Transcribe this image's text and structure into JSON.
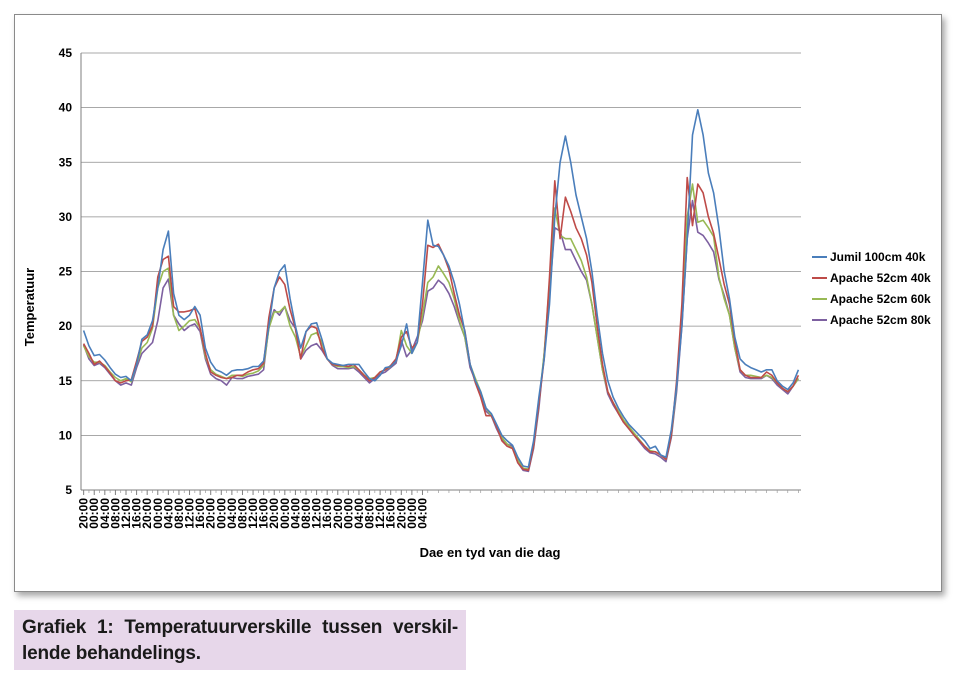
{
  "chart_data": {
    "type": "line",
    "title": "",
    "xlabel": "Dae en tyd van die dag",
    "ylabel": "Temperatuur",
    "ylim": [
      5,
      45
    ],
    "yticks": [
      5,
      10,
      15,
      20,
      25,
      30,
      35,
      40,
      45
    ],
    "grid": "horizontal",
    "legend_position": "right",
    "x_tick_labels": [
      "20:00",
      "00:00",
      "04:00",
      "08:00",
      "12:00",
      "16:00",
      "20:00",
      "00:00",
      "04:00",
      "08:00",
      "12:00",
      "16:00",
      "20:00",
      "00:00",
      "04:00",
      "08:00",
      "12:00",
      "16:00",
      "20:00",
      "00:00",
      "04:00",
      "08:00",
      "12:00",
      "16:00",
      "20:00",
      "00:00",
      "04:00",
      "08:00",
      "12:00",
      "16:00",
      "20:00",
      "00:00",
      "04:00"
    ],
    "x_interval_hours": 2,
    "series": [
      {
        "name": "Jumil 100cm 40k",
        "color": "#4a7ebb",
        "values": [
          19.6,
          18.2,
          17.3,
          17.4,
          16.9,
          16.2,
          15.6,
          15.3,
          15.4,
          15.0,
          16.5,
          18.8,
          19.2,
          20.5,
          23.5,
          27.0,
          28.7,
          23.0,
          21.0,
          20.6,
          21.0,
          21.8,
          21.0,
          18.0,
          16.7,
          16.0,
          15.8,
          15.5,
          15.9,
          16.0,
          16.0,
          16.1,
          16.3,
          16.3,
          16.8,
          20.0,
          23.5,
          25.0,
          25.6,
          22.5,
          20.0,
          18.0,
          19.5,
          20.2,
          20.3,
          18.8,
          17.0,
          16.6,
          16.5,
          16.4,
          16.5,
          16.5,
          16.5,
          15.8,
          15.2,
          15.0,
          15.5,
          16.2,
          16.3,
          16.8,
          18.2,
          20.2,
          17.5,
          18.5,
          24.0,
          29.7,
          27.4,
          27.3,
          26.5,
          25.5,
          24.0,
          22.0,
          19.5,
          16.5,
          15.0,
          14.0,
          12.5,
          12.0,
          11.0,
          10.0,
          9.5,
          9.1,
          8.0,
          7.2,
          7.1,
          9.5,
          13.5,
          17.0,
          22.0,
          30.0,
          35.0,
          37.4,
          35.0,
          32.0,
          30.0,
          28.0,
          25.0,
          21.0,
          17.5,
          15.0,
          13.5,
          12.5,
          11.7,
          11.0,
          10.5,
          10.0,
          9.5,
          8.8,
          9.0,
          8.2,
          8.0,
          10.5,
          14.5,
          20.0,
          28.0,
          37.5,
          39.8,
          37.5,
          34.0,
          32.2,
          29.0,
          25.0,
          22.5,
          19.0,
          17.0,
          16.5,
          16.2,
          16.0,
          15.8,
          16.0,
          16.0,
          15.0,
          14.5,
          14.2,
          14.8,
          16.0
        ]
      },
      {
        "name": "Apache 52cm 40k",
        "color": "#be4b48",
        "values": [
          18.4,
          17.5,
          16.5,
          16.8,
          16.3,
          15.7,
          15.0,
          14.8,
          15.0,
          15.1,
          16.8,
          18.6,
          19.0,
          20.0,
          24.5,
          26.1,
          26.4,
          21.8,
          21.3,
          21.3,
          21.4,
          21.6,
          19.8,
          17.5,
          15.8,
          15.5,
          15.3,
          15.2,
          15.3,
          15.5,
          15.5,
          15.8,
          16.0,
          16.1,
          16.6,
          20.8,
          23.5,
          24.5,
          23.8,
          21.5,
          19.8,
          17.0,
          19.5,
          20.0,
          19.8,
          18.0,
          17.0,
          16.5,
          16.4,
          16.4,
          16.3,
          16.5,
          16.0,
          15.5,
          15.0,
          15.3,
          15.8,
          16.0,
          16.4,
          17.0,
          19.0,
          19.5,
          18.0,
          18.5,
          22.0,
          27.4,
          27.2,
          27.5,
          26.5,
          25.2,
          23.0,
          21.0,
          19.6,
          16.5,
          14.8,
          13.5,
          11.8,
          11.8,
          10.8,
          9.5,
          9.0,
          8.8,
          7.5,
          6.9,
          6.8,
          9.0,
          13.0,
          17.0,
          24.5,
          33.3,
          28.0,
          31.8,
          30.5,
          29.0,
          28.0,
          26.5,
          24.0,
          20.0,
          16.5,
          14.0,
          13.0,
          12.0,
          11.2,
          10.6,
          10.0,
          9.5,
          9.0,
          8.5,
          8.5,
          8.2,
          7.8,
          10.0,
          15.0,
          22.0,
          33.6,
          29.2,
          33.0,
          32.2,
          30.0,
          28.5,
          26.2,
          23.8,
          22.0,
          18.6,
          16.0,
          15.5,
          15.3,
          15.3,
          15.3,
          15.8,
          15.5,
          14.8,
          14.3,
          14.0,
          14.5,
          15.5
        ]
      },
      {
        "name": "Apache 52cm 60k",
        "color": "#98b954",
        "values": [
          18.2,
          17.2,
          16.7,
          16.7,
          16.4,
          15.8,
          15.3,
          15.0,
          15.2,
          14.9,
          16.5,
          18.0,
          18.5,
          19.8,
          23.5,
          25.0,
          25.3,
          21.0,
          19.6,
          20.0,
          20.5,
          20.6,
          19.8,
          17.2,
          16.0,
          15.6,
          15.4,
          15.2,
          15.5,
          15.5,
          15.4,
          15.6,
          15.7,
          15.9,
          16.4,
          19.8,
          21.3,
          21.3,
          21.8,
          20.0,
          19.0,
          17.2,
          18.2,
          19.2,
          19.4,
          18.5,
          17.0,
          16.5,
          16.3,
          16.3,
          16.2,
          16.3,
          16.0,
          15.5,
          15.2,
          15.3,
          15.8,
          16.0,
          16.3,
          16.8,
          19.6,
          18.2,
          17.5,
          18.5,
          21.0,
          24.0,
          24.5,
          25.5,
          24.8,
          24.0,
          22.5,
          20.5,
          19.0,
          16.5,
          15.2,
          14.0,
          12.5,
          11.8,
          10.8,
          9.8,
          9.2,
          8.8,
          7.8,
          7.0,
          6.9,
          9.0,
          13.0,
          17.5,
          24.0,
          30.8,
          28.3,
          28.0,
          28.0,
          27.0,
          26.0,
          24.5,
          22.0,
          19.0,
          16.0,
          14.0,
          13.0,
          12.2,
          11.4,
          10.8,
          10.2,
          9.6,
          9.0,
          8.6,
          8.5,
          8.2,
          7.8,
          10.0,
          14.5,
          21.0,
          30.0,
          33.0,
          29.5,
          29.7,
          29.0,
          28.2,
          24.5,
          22.5,
          21.0,
          18.0,
          16.0,
          15.5,
          15.5,
          15.4,
          15.3,
          15.5,
          15.3,
          14.8,
          14.3,
          14.0,
          14.5,
          15.2
        ]
      },
      {
        "name": "Apache 52cm 80k",
        "color": "#7d60a0",
        "values": [
          18.3,
          17.0,
          16.4,
          16.6,
          16.2,
          15.6,
          15.0,
          14.6,
          14.8,
          14.6,
          16.2,
          17.5,
          18.0,
          18.5,
          20.5,
          23.5,
          24.3,
          21.0,
          20.2,
          19.6,
          20.0,
          20.2,
          19.5,
          17.0,
          15.6,
          15.2,
          15.0,
          14.6,
          15.3,
          15.2,
          15.2,
          15.4,
          15.5,
          15.6,
          16.0,
          20.0,
          21.5,
          21.0,
          21.8,
          20.5,
          19.8,
          17.0,
          17.8,
          18.2,
          18.4,
          17.8,
          17.0,
          16.4,
          16.1,
          16.1,
          16.1,
          16.2,
          15.8,
          15.3,
          14.8,
          15.2,
          15.6,
          15.8,
          16.2,
          16.6,
          18.7,
          17.2,
          17.8,
          19.0,
          20.5,
          23.2,
          23.5,
          24.2,
          23.8,
          23.0,
          21.8,
          20.3,
          19.0,
          16.2,
          15.0,
          13.8,
          12.2,
          11.8,
          10.6,
          9.6,
          9.2,
          9.0,
          7.5,
          6.8,
          6.7,
          8.8,
          12.5,
          17.5,
          23.0,
          29.0,
          28.7,
          27.0,
          27.0,
          26.0,
          25.0,
          24.2,
          22.0,
          19.0,
          16.0,
          13.8,
          12.8,
          12.0,
          11.2,
          10.6,
          10.0,
          9.4,
          8.8,
          8.4,
          8.3,
          8.0,
          7.6,
          9.8,
          14.0,
          20.0,
          28.0,
          31.5,
          28.6,
          28.3,
          27.6,
          26.8,
          24.3,
          22.8,
          21.0,
          18.0,
          15.8,
          15.3,
          15.2,
          15.2,
          15.2,
          15.5,
          15.2,
          14.6,
          14.2,
          13.8,
          14.5,
          15.2
        ]
      }
    ]
  },
  "caption": "Grafiek 1: Temperatuurverskille tussen verskil-lende behandelings."
}
